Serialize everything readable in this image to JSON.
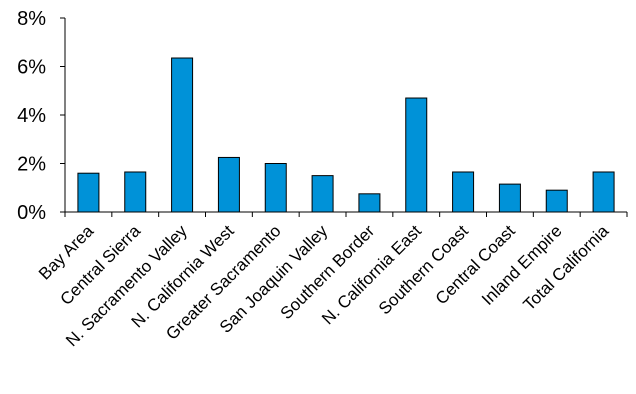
{
  "chart_data": {
    "type": "bar",
    "title": "",
    "xlabel": "",
    "ylabel": "",
    "categories": [
      "Bay Area",
      "Central Sierra",
      "N. Sacramento Valley",
      "N. California West",
      "Greater Sacramento",
      "San Joaquin Valley",
      "Southern Border",
      "N. California East",
      "Southern Coast",
      "Central Coast",
      "Inland Empire",
      "Total California"
    ],
    "values": [
      1.6,
      1.65,
      6.35,
      2.25,
      2.0,
      1.5,
      0.75,
      4.7,
      1.65,
      1.15,
      0.9,
      1.65
    ],
    "ylim": [
      0,
      8
    ],
    "yticks": [
      0,
      2,
      4,
      6,
      8
    ],
    "ytick_labels": [
      "0%",
      "2%",
      "4%",
      "6%",
      "8%"
    ],
    "grid": false,
    "bar_color": "#0092d8",
    "bar_edge_color": "#000000"
  }
}
